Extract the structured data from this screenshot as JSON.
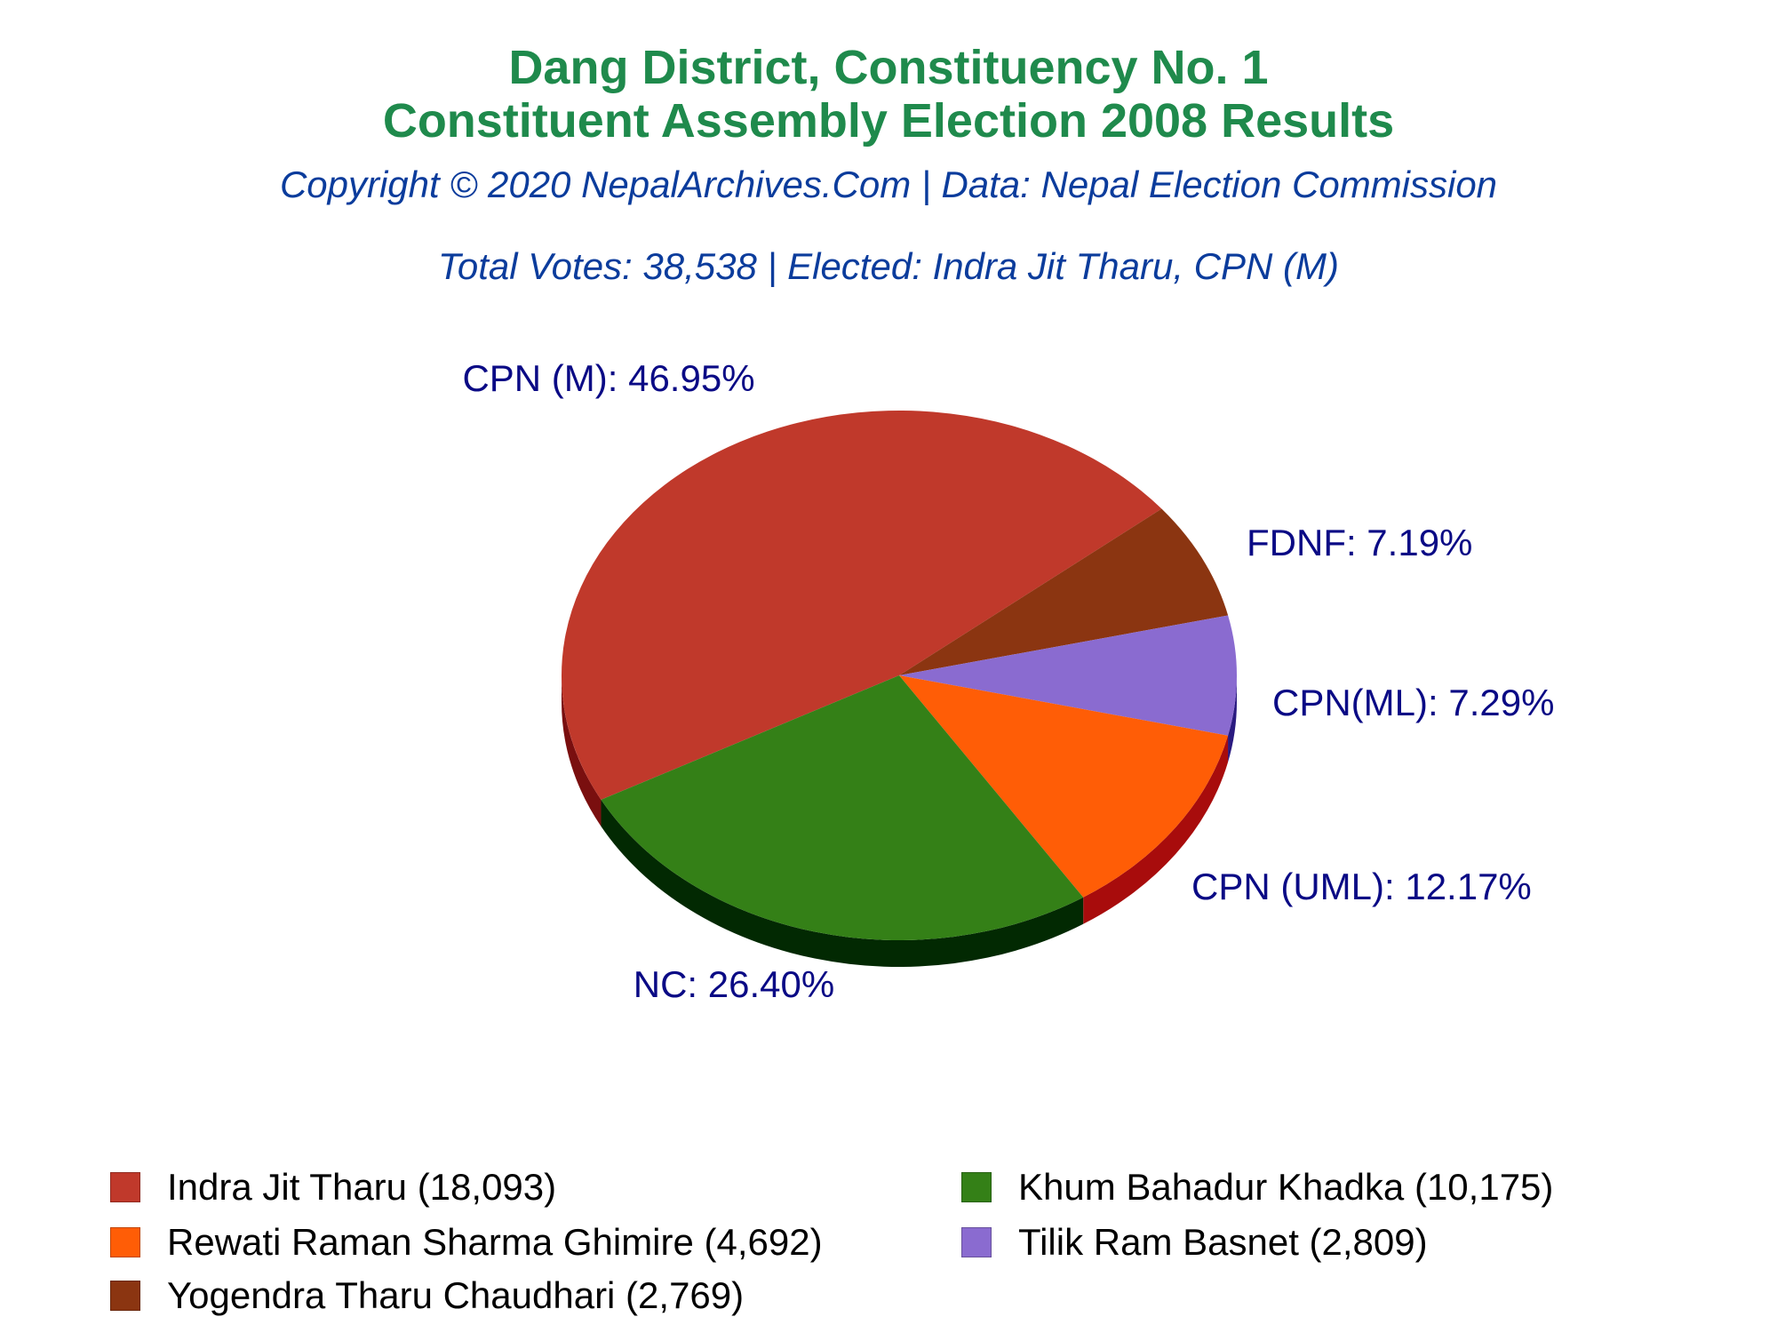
{
  "header": {
    "title_line1": "Dang District, Constituency No. 1",
    "title_line2": "Constituent Assembly Election 2008 Results",
    "subtitle": "Copyright © 2020 NepalArchives.Com | Data: Nepal Election Commission",
    "summary": "Total Votes: 38,538 | Elected: Indra Jit Tharu, CPN (M)"
  },
  "chart_data": {
    "type": "pie",
    "slices": [
      {
        "label": "CPN (M): 46.95%",
        "value": 46.95,
        "color": "#c0392b",
        "side": "#7a0f0f"
      },
      {
        "label": "FDNF: 7.19%",
        "value": 7.19,
        "color": "#8b3511",
        "side": "#4a1606"
      },
      {
        "label": "CPN(ML): 7.29%",
        "value": 7.29,
        "color": "#8a6bd0",
        "side": "#2a1a80"
      },
      {
        "label": "CPN (UML): 12.17%",
        "value": 12.17,
        "color": "#ff5d06",
        "side": "#a80c0c"
      },
      {
        "label": "NC: 26.40%",
        "value": 26.4,
        "color": "#348017",
        "side": "#022902"
      }
    ],
    "label_color": "#0a0a85"
  },
  "legend": [
    {
      "text": "Indra Jit Tharu (18,093)",
      "color": "#c0392b"
    },
    {
      "text": "Khum Bahadur Khadka (10,175)",
      "color": "#348017"
    },
    {
      "text": "Rewati Raman Sharma Ghimire (4,692)",
      "color": "#ff5d06"
    },
    {
      "text": "Tilik Ram Basnet (2,809)",
      "color": "#8a6bd0"
    },
    {
      "text": "Yogendra Tharu Chaudhari (2,769)",
      "color": "#8b3511"
    }
  ]
}
